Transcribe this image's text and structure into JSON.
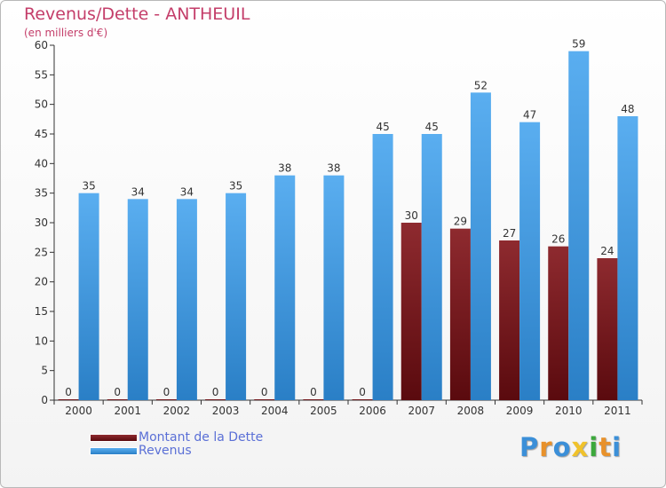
{
  "chart_data": {
    "type": "bar",
    "title": "Revenus/Dette - ANTHEUIL",
    "subtitle": "(en milliers d'€)",
    "categories": [
      "2000",
      "2001",
      "2002",
      "2003",
      "2004",
      "2005",
      "2006",
      "2007",
      "2008",
      "2009",
      "2010",
      "2011"
    ],
    "series": [
      {
        "name": "Montant de la Dette",
        "color": "#7a1a1f",
        "values": [
          0,
          0,
          0,
          0,
          0,
          0,
          0,
          30,
          29,
          27,
          26,
          24
        ]
      },
      {
        "name": "Revenus",
        "color": "#3f9be4",
        "values": [
          35,
          34,
          34,
          35,
          38,
          38,
          45,
          45,
          52,
          47,
          59,
          48
        ]
      }
    ],
    "ylim": [
      0,
      60
    ],
    "yticks": [
      0,
      5,
      10,
      15,
      20,
      25,
      30,
      35,
      40,
      45,
      50,
      55,
      60
    ],
    "grid": false,
    "legend_position": "bottom-left"
  },
  "logo": {
    "letters": [
      {
        "ch": "P",
        "color": "#3b8fd8"
      },
      {
        "ch": "r",
        "color": "#e8912a"
      },
      {
        "ch": "o",
        "color": "#3b8fd8"
      },
      {
        "ch": "x",
        "color": "#f0c22b"
      },
      {
        "ch": "i",
        "color": "#3ba83b"
      },
      {
        "ch": "t",
        "color": "#e8912a"
      },
      {
        "ch": "i",
        "color": "#3b8fd8"
      }
    ]
  }
}
